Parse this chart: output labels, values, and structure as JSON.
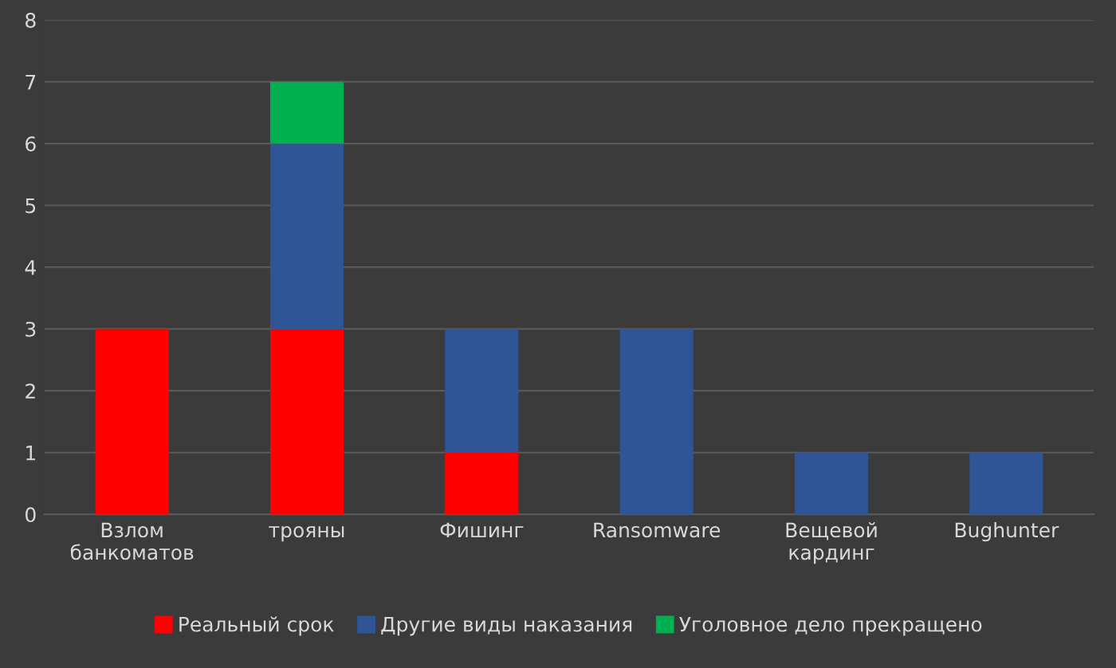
{
  "chart_data": {
    "type": "bar",
    "stacked": true,
    "categories": [
      "Взлом\nбанкоматов",
      "трояны",
      "Фишинг",
      "Ransomware",
      "Вещевой\nкардинг",
      "Bughunter"
    ],
    "series": [
      {
        "name": "Реальный срок",
        "color": "#ff0000",
        "values": [
          3,
          3,
          1,
          0,
          0,
          0
        ]
      },
      {
        "name": "Другие виды наказания",
        "color": "#2f5597",
        "values": [
          0,
          3,
          2,
          3,
          1,
          1
        ]
      },
      {
        "name": "Уголовное дело прекращено",
        "color": "#00b050",
        "values": [
          0,
          1,
          0,
          0,
          0,
          0
        ]
      }
    ],
    "ylim": [
      0,
      8
    ],
    "yticks": [
      0,
      1,
      2,
      3,
      4,
      5,
      6,
      7,
      8
    ],
    "grid": "y",
    "legend": "bottom"
  }
}
